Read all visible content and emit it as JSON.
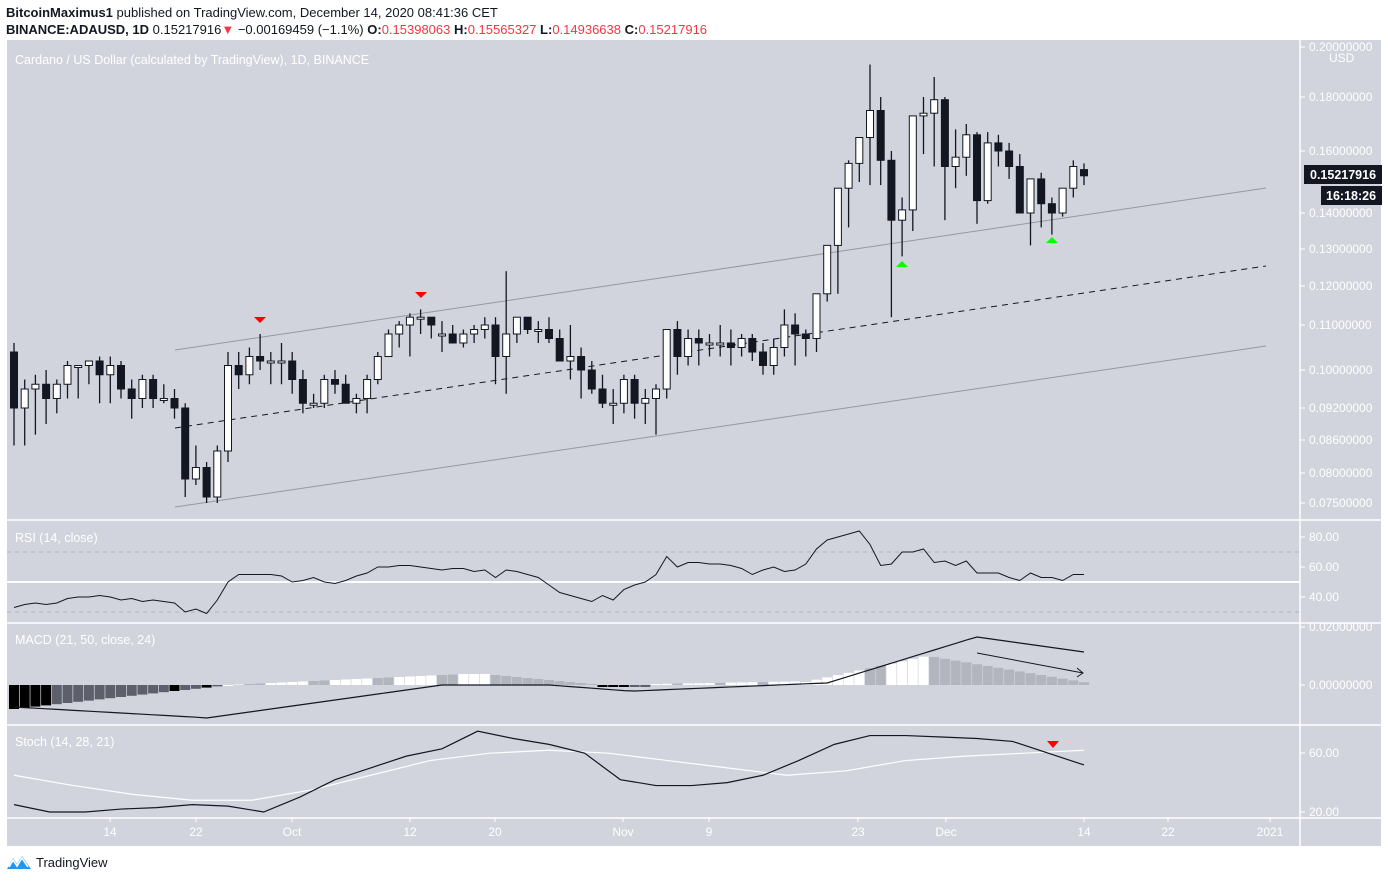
{
  "header": {
    "line1_user": "BitcoinMaximus1",
    "line1_rest": " published on TradingView.com, December 14, 2020 08:41:36 CET",
    "symbol": "BINANCE:ADAUSD, 1D",
    "last": "0.15217916",
    "change": "−0.00169459 (−1.1%)",
    "o_label": "O:",
    "o": "0.15398063",
    "h_label": "H:",
    "h": "0.15565327",
    "l_label": "L:",
    "l": "0.14936638",
    "c_label": "C:",
    "c": "0.15217916"
  },
  "main_pane": {
    "title": "Cardano / US Dollar (calculated by TradingView), 1D, BINANCE",
    "currency": "USD",
    "price_ticks": [
      "0.20000000",
      "0.18000000",
      "0.16000000",
      "0.14000000",
      "0.13000000",
      "0.12000000",
      "0.11000000",
      "0.10000000",
      "0.09200000",
      "0.08600000",
      "0.08000000",
      "0.07500000"
    ],
    "last_price_badge": "0.15217916",
    "countdown_badge": "16:18:26"
  },
  "rsi_pane": {
    "title": "RSI (14, close)",
    "ticks": [
      "80.00",
      "60.00",
      "40.00"
    ]
  },
  "macd_pane": {
    "title": "MACD (21, 50, close, 24)",
    "ticks": [
      "0.02000000",
      "0.00000000"
    ]
  },
  "stoch_pane": {
    "title": "Stoch (14, 28, 21)",
    "ticks": [
      "60.00",
      "20.00"
    ]
  },
  "time_axis": {
    "labels": [
      "14",
      "22",
      "Oct",
      "12",
      "20",
      "Nov",
      "9",
      "23",
      "Dec",
      "14",
      "22",
      "2021"
    ]
  },
  "footer": {
    "brand": "TradingView"
  },
  "colors": {
    "bg": "#d1d4dc",
    "up": "#ffffff",
    "down": "#131722",
    "marker_red": "#ff0000",
    "marker_green": "#00ff00",
    "text_red": "#f23645"
  },
  "chart_data": {
    "type": "candlestick",
    "title": "Cardano / US Dollar (calculated by TradingView), 1D, BINANCE",
    "symbol": "BINANCE:ADAUSD",
    "interval": "1D",
    "ylabel": "USD",
    "yscale": "log",
    "ylim": [
      0.074,
      0.2
    ],
    "x_tick_labels": [
      "14",
      "22",
      "Oct",
      "12",
      "20",
      "Nov",
      "9",
      "23",
      "Dec",
      "14",
      "22",
      "2021"
    ],
    "candles_ohlc": [
      [
        0.104,
        0.106,
        0.085,
        0.092
      ],
      [
        0.092,
        0.098,
        0.085,
        0.096
      ],
      [
        0.096,
        0.099,
        0.087,
        0.097
      ],
      [
        0.097,
        0.1,
        0.089,
        0.094
      ],
      [
        0.094,
        0.098,
        0.091,
        0.097
      ],
      [
        0.097,
        0.102,
        0.094,
        0.101
      ],
      [
        0.101,
        0.101,
        0.094,
        0.101
      ],
      [
        0.101,
        0.102,
        0.097,
        0.102
      ],
      [
        0.102,
        0.103,
        0.093,
        0.099
      ],
      [
        0.099,
        0.103,
        0.093,
        0.101
      ],
      [
        0.101,
        0.102,
        0.094,
        0.096
      ],
      [
        0.096,
        0.098,
        0.09,
        0.094
      ],
      [
        0.094,
        0.099,
        0.092,
        0.098
      ],
      [
        0.098,
        0.099,
        0.092,
        0.094
      ],
      [
        0.094,
        0.097,
        0.093,
        0.094
      ],
      [
        0.094,
        0.096,
        0.09,
        0.092
      ],
      [
        0.092,
        0.093,
        0.076,
        0.079
      ],
      [
        0.079,
        0.085,
        0.078,
        0.081
      ],
      [
        0.081,
        0.082,
        0.075,
        0.076
      ],
      [
        0.076,
        0.085,
        0.075,
        0.084
      ],
      [
        0.084,
        0.104,
        0.082,
        0.101
      ],
      [
        0.101,
        0.104,
        0.096,
        0.099
      ],
      [
        0.099,
        0.105,
        0.097,
        0.103
      ],
      [
        0.103,
        0.108,
        0.1,
        0.102
      ],
      [
        0.102,
        0.104,
        0.097,
        0.102
      ],
      [
        0.102,
        0.106,
        0.097,
        0.102
      ],
      [
        0.102,
        0.104,
        0.095,
        0.098
      ],
      [
        0.098,
        0.1,
        0.091,
        0.093
      ],
      [
        0.093,
        0.095,
        0.092,
        0.093
      ],
      [
        0.093,
        0.099,
        0.092,
        0.098
      ],
      [
        0.098,
        0.1,
        0.095,
        0.097
      ],
      [
        0.097,
        0.099,
        0.093,
        0.093
      ],
      [
        0.093,
        0.095,
        0.091,
        0.094
      ],
      [
        0.094,
        0.099,
        0.091,
        0.098
      ],
      [
        0.098,
        0.104,
        0.097,
        0.103
      ],
      [
        0.103,
        0.109,
        0.103,
        0.108
      ],
      [
        0.108,
        0.111,
        0.105,
        0.11
      ],
      [
        0.11,
        0.113,
        0.103,
        0.112
      ],
      [
        0.112,
        0.114,
        0.108,
        0.112
      ],
      [
        0.112,
        0.112,
        0.107,
        0.11
      ],
      [
        0.108,
        0.111,
        0.104,
        0.108
      ],
      [
        0.108,
        0.11,
        0.106,
        0.106
      ],
      [
        0.106,
        0.109,
        0.105,
        0.108
      ],
      [
        0.108,
        0.11,
        0.106,
        0.109
      ],
      [
        0.109,
        0.112,
        0.107,
        0.11
      ],
      [
        0.11,
        0.112,
        0.097,
        0.103
      ],
      [
        0.103,
        0.124,
        0.095,
        0.108
      ],
      [
        0.108,
        0.112,
        0.106,
        0.112
      ],
      [
        0.112,
        0.112,
        0.108,
        0.109
      ],
      [
        0.109,
        0.111,
        0.106,
        0.109
      ],
      [
        0.109,
        0.112,
        0.106,
        0.107
      ],
      [
        0.107,
        0.109,
        0.103,
        0.102
      ],
      [
        0.102,
        0.11,
        0.098,
        0.103
      ],
      [
        0.103,
        0.105,
        0.094,
        0.1
      ],
      [
        0.1,
        0.102,
        0.095,
        0.096
      ],
      [
        0.096,
        0.099,
        0.092,
        0.093
      ],
      [
        0.093,
        0.096,
        0.089,
        0.093
      ],
      [
        0.093,
        0.099,
        0.091,
        0.098
      ],
      [
        0.098,
        0.099,
        0.09,
        0.093
      ],
      [
        0.093,
        0.096,
        0.089,
        0.094
      ],
      [
        0.094,
        0.097,
        0.087,
        0.096
      ],
      [
        0.096,
        0.104,
        0.094,
        0.109
      ],
      [
        0.109,
        0.111,
        0.099,
        0.103
      ],
      [
        0.103,
        0.109,
        0.101,
        0.107
      ],
      [
        0.107,
        0.109,
        0.101,
        0.106
      ],
      [
        0.106,
        0.108,
        0.103,
        0.106
      ],
      [
        0.106,
        0.11,
        0.103,
        0.106
      ],
      [
        0.106,
        0.109,
        0.101,
        0.105
      ],
      [
        0.105,
        0.108,
        0.103,
        0.107
      ],
      [
        0.107,
        0.108,
        0.102,
        0.104
      ],
      [
        0.104,
        0.106,
        0.099,
        0.101
      ],
      [
        0.101,
        0.107,
        0.099,
        0.105
      ],
      [
        0.105,
        0.114,
        0.103,
        0.11
      ],
      [
        0.11,
        0.113,
        0.101,
        0.108
      ],
      [
        0.108,
        0.109,
        0.103,
        0.107
      ],
      [
        0.107,
        0.118,
        0.104,
        0.118
      ],
      [
        0.118,
        0.131,
        0.116,
        0.131
      ],
      [
        0.131,
        0.145,
        0.118,
        0.148
      ],
      [
        0.148,
        0.157,
        0.136,
        0.156
      ],
      [
        0.156,
        0.165,
        0.15,
        0.165
      ],
      [
        0.165,
        0.193,
        0.149,
        0.175
      ],
      [
        0.175,
        0.18,
        0.149,
        0.157
      ],
      [
        0.157,
        0.16,
        0.112,
        0.138
      ],
      [
        0.138,
        0.145,
        0.128,
        0.141
      ],
      [
        0.141,
        0.172,
        0.135,
        0.173
      ],
      [
        0.173,
        0.18,
        0.159,
        0.174
      ],
      [
        0.174,
        0.188,
        0.155,
        0.179
      ],
      [
        0.179,
        0.18,
        0.138,
        0.155
      ],
      [
        0.155,
        0.168,
        0.148,
        0.158
      ],
      [
        0.158,
        0.17,
        0.152,
        0.166
      ],
      [
        0.166,
        0.167,
        0.137,
        0.144
      ],
      [
        0.144,
        0.167,
        0.143,
        0.163
      ],
      [
        0.163,
        0.166,
        0.155,
        0.16
      ],
      [
        0.16,
        0.163,
        0.151,
        0.155
      ],
      [
        0.155,
        0.159,
        0.14,
        0.14
      ],
      [
        0.14,
        0.15,
        0.131,
        0.151
      ],
      [
        0.151,
        0.153,
        0.136,
        0.143
      ],
      [
        0.143,
        0.145,
        0.134,
        0.14
      ],
      [
        0.14,
        0.148,
        0.139,
        0.148
      ],
      [
        0.148,
        0.157,
        0.145,
        0.155
      ],
      [
        0.154,
        0.156,
        0.149,
        0.152
      ]
    ],
    "annotations": [
      {
        "type": "ascending_channel",
        "upper": [
          [
            0.105,
            "Sep 21"
          ],
          [
            0.149,
            "Dec 31"
          ]
        ],
        "lower": [
          [
            0.075,
            "Sep 21"
          ],
          [
            0.106,
            "Dec 31"
          ]
        ],
        "mid": "dashed"
      },
      {
        "type": "marker_down_red",
        "at": "Sep 28 high"
      },
      {
        "type": "marker_down_red",
        "at": "Oct 13 high"
      },
      {
        "type": "marker_up_green",
        "at": "Nov 26 low"
      },
      {
        "type": "marker_up_green",
        "at": "Dec 11 low"
      }
    ],
    "indicators": {
      "rsi": {
        "params": "14, close",
        "levels": [
          70,
          50,
          30
        ],
        "approx_values": [
          33,
          35,
          36,
          35,
          36,
          39,
          40,
          40,
          41,
          40,
          38,
          39,
          37,
          38,
          37,
          36,
          30,
          32,
          29,
          38,
          50,
          55,
          55,
          55,
          55,
          54,
          50,
          51,
          53,
          50,
          49,
          51,
          54,
          56,
          60,
          60,
          61,
          61,
          60,
          59,
          58,
          59,
          59,
          57,
          58,
          53,
          58,
          57,
          55,
          53,
          48,
          43,
          41,
          39,
          37,
          41,
          38,
          45,
          48,
          50,
          55,
          67,
          60,
          63,
          63,
          62,
          62,
          61,
          59,
          55,
          58,
          60,
          57,
          58,
          62,
          72,
          78,
          80,
          82,
          84,
          75,
          61,
          62,
          70,
          70,
          72,
          63,
          64,
          61,
          64,
          56,
          56,
          56,
          53,
          51,
          56,
          53,
          53,
          51,
          55,
          55
        ]
      },
      "macd": {
        "params": "21, 50, close, 24",
        "approx_macd_line_trend": "negative mid-Sep, rising through Oct, dip early Nov, sharp rise late Nov peaking ~0.016 early Dec, declining",
        "histogram": "negative Sep, positive from Oct, peak late Nov, declining into Dec (bearish divergence arrow drawn)"
      },
      "stoch": {
        "params": "14, 28, 21",
        "k_approx": [
          25,
          20,
          20,
          22,
          23,
          25,
          24,
          20,
          30,
          42,
          50,
          58,
          63,
          75,
          70,
          66,
          60,
          42,
          38,
          38,
          40,
          45,
          55,
          66,
          72,
          72,
          71,
          70,
          68,
          60,
          52
        ],
        "d_approx": [
          45,
          38,
          32,
          28,
          28,
          35,
          45,
          55,
          60,
          62,
          60,
          55,
          50,
          45,
          48,
          55,
          58,
          60,
          62
        ]
      }
    }
  }
}
